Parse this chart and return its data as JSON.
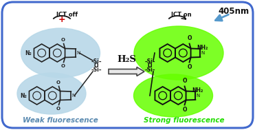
{
  "bg_color": "#ffffff",
  "border_color": "#4169cd",
  "title_405": "405nm",
  "label_ict_off": "ICT off",
  "label_ict_on": "ICT on",
  "label_h2s": "H₂S",
  "label_weak": "Weak fluorescence",
  "label_strong": "Strong fluorescence",
  "weak_color": "#5a8ab0",
  "strong_color": "#22dd00",
  "left_mol_color": "#222222",
  "right_mol_color": "#111111",
  "glow_left": "#b8d8e8",
  "glow_right": "#66ff00",
  "red_x_color": "#cc0000",
  "blue_arrow_color": "#5599cc",
  "arrow_fill": "#e8e8e8",
  "arrow_edge": "#444444"
}
